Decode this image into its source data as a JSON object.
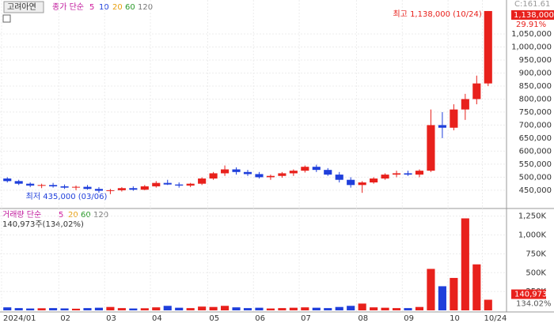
{
  "title": "고려아연",
  "price_legend": {
    "label": "종가 단순",
    "periods": [
      "5",
      "10",
      "20",
      "60",
      "120"
    ]
  },
  "volume_legend": {
    "label": "거래량 단순",
    "periods": [
      "5",
      "20",
      "60",
      "120"
    ]
  },
  "volume_info": "140,973주(134,02%)",
  "chart_data": [
    {
      "type": "candlestick",
      "categories": [
        "2024/01",
        null,
        null,
        null,
        null,
        "02",
        null,
        null,
        null,
        "03",
        null,
        null,
        null,
        "04",
        null,
        null,
        null,
        null,
        "05",
        null,
        null,
        null,
        "06",
        null,
        null,
        null,
        "07",
        null,
        null,
        null,
        null,
        "08",
        null,
        null,
        null,
        "09",
        null,
        null,
        null,
        "10",
        null,
        null,
        "10/24"
      ],
      "open": [
        495000,
        485000,
        475000,
        468000,
        470000,
        465000,
        460000,
        463000,
        455000,
        448000,
        450000,
        458000,
        452000,
        465000,
        478000,
        472000,
        468000,
        475000,
        495000,
        515000,
        530000,
        520000,
        512000,
        500000,
        505000,
        515000,
        525000,
        540000,
        528000,
        510000,
        490000,
        470000,
        480000,
        495000,
        510000,
        515000,
        510000,
        525000,
        700000,
        690000,
        760000,
        800000,
        860000
      ],
      "high": [
        500000,
        490000,
        480000,
        475000,
        478000,
        472000,
        468000,
        470000,
        462000,
        455000,
        462000,
        465000,
        470000,
        485000,
        490000,
        480000,
        478000,
        500000,
        520000,
        545000,
        538000,
        528000,
        520000,
        510000,
        520000,
        530000,
        545000,
        548000,
        535000,
        520000,
        500000,
        485000,
        500000,
        515000,
        525000,
        525000,
        530000,
        760000,
        750000,
        780000,
        820000,
        890000,
        1138000
      ],
      "low": [
        480000,
        470000,
        462000,
        458000,
        460000,
        455000,
        450000,
        452000,
        440000,
        435000,
        445000,
        448000,
        450000,
        460000,
        470000,
        460000,
        462000,
        470000,
        490000,
        505000,
        510000,
        505000,
        495000,
        490000,
        498000,
        505000,
        518000,
        520000,
        505000,
        480000,
        460000,
        440000,
        475000,
        490000,
        500000,
        505000,
        500000,
        520000,
        650000,
        680000,
        720000,
        780000,
        850000
      ],
      "close": [
        485000,
        475000,
        468000,
        470000,
        465000,
        460000,
        463000,
        455000,
        448000,
        450000,
        458000,
        452000,
        465000,
        478000,
        472000,
        468000,
        475000,
        495000,
        515000,
        530000,
        520000,
        512000,
        500000,
        505000,
        515000,
        525000,
        540000,
        528000,
        510000,
        490000,
        470000,
        480000,
        495000,
        510000,
        515000,
        510000,
        525000,
        700000,
        690000,
        760000,
        800000,
        860000,
        1138000
      ],
      "up_color": "#e8211c",
      "down_color": "#1f3fdb",
      "ylim": [
        386000,
        1150000
      ],
      "yticks": [
        {
          "value": 450000,
          "label": "450,000"
        },
        {
          "value": 500000,
          "label": "500,000"
        },
        {
          "value": 550000,
          "label": "550,000"
        },
        {
          "value": 600000,
          "label": "600,000"
        },
        {
          "value": 650000,
          "label": "650,000"
        },
        {
          "value": 700000,
          "label": "700,000"
        },
        {
          "value": 750000,
          "label": "750,000"
        },
        {
          "value": 800000,
          "label": "800,000"
        },
        {
          "value": 850000,
          "label": "850,000"
        },
        {
          "value": 900000,
          "label": "900,000"
        },
        {
          "value": 950000,
          "label": "950,000"
        },
        {
          "value": 1000000,
          "label": "1,000,000"
        },
        {
          "value": 1050000,
          "label": "1,050,000"
        }
      ],
      "high_label": "최고 1,138,000 (10/24)",
      "low_label": "최저 435,000 (03/06)",
      "corner_label": "C:161.61",
      "current_label": "1,138,000",
      "change_label": "29.91%"
    },
    {
      "type": "bar",
      "values": [
        40000,
        30000,
        25000,
        28000,
        30000,
        26000,
        22000,
        30000,
        35000,
        45000,
        30000,
        25000,
        28000,
        40000,
        60000,
        35000,
        30000,
        50000,
        45000,
        60000,
        40000,
        30000,
        35000,
        25000,
        30000,
        35000,
        40000,
        35000,
        30000,
        45000,
        60000,
        90000,
        40000,
        35000,
        30000,
        30000,
        45000,
        550000,
        320000,
        430000,
        1220000,
        610000,
        140973
      ],
      "ylim": [
        0,
        1330000
      ],
      "yticks": [
        {
          "value": 250000,
          "label": "250K"
        },
        {
          "value": 500000,
          "label": "500K"
        },
        {
          "value": 750000,
          "label": "750K"
        },
        {
          "value": 1000000,
          "label": "1,000K"
        },
        {
          "value": 1250000,
          "label": "1,250K"
        }
      ],
      "current_label": "140,973",
      "ratio_label": "134.02%"
    }
  ]
}
